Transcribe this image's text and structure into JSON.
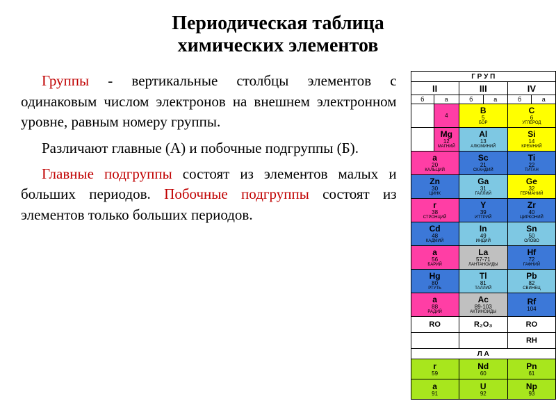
{
  "title_l1": "Периодическая таблица",
  "title_l2": "химических элементов",
  "paragraphs": {
    "p1_kw": "Группы",
    "p1_rest": " - вертикальные столбцы элементов с одинаковым числом электронов на внешнем электронном уровне, равным номеру группы.",
    "p2": "Различают главные (А) и побочные подгруппы (Б).",
    "p3_kw": "Главные подгруппы",
    "p3_rest": " состоят из элементов малых и больших периодов.",
    "p4_kw": "Побочные подгруппы",
    "p4_rest": " состоят из элементов только больших периодов."
  },
  "table": {
    "header_top": "Г Р У П",
    "group_labels": [
      "II",
      "III",
      "IV"
    ],
    "sub_labels": [
      "б",
      "а",
      "б",
      "а",
      "б",
      "а"
    ],
    "rows": [
      [
        {
          "sym": "",
          "num": "",
          "name": "",
          "colspan": 1,
          "cls": "white"
        },
        {
          "sym": "",
          "num": "4",
          "name": "",
          "colspan": 1,
          "cls": "pink"
        },
        {
          "sym": "B",
          "num": "5",
          "name": "БОР",
          "colspan": 2,
          "cls": "yellow"
        },
        {
          "sym": "C",
          "num": "6",
          "name": "УГЛЕРОД",
          "colspan": 2,
          "cls": "yellow"
        }
      ],
      [
        {
          "sym": "",
          "num": "",
          "name": "",
          "colspan": 1,
          "cls": "white"
        },
        {
          "sym": "Mg",
          "num": "12",
          "name": "МАГНИЙ",
          "colspan": 1,
          "cls": "pink"
        },
        {
          "sym": "Al",
          "num": "13",
          "name": "АЛЮМИНИЙ",
          "colspan": 2,
          "cls": "sky"
        },
        {
          "sym": "Si",
          "num": "14",
          "name": "КРЕМНИЙ",
          "colspan": 2,
          "cls": "yellow"
        }
      ],
      [
        {
          "sym": "a",
          "num": "20",
          "name": "КАЛЬЦИЙ",
          "colspan": 2,
          "cls": "pink"
        },
        {
          "sym": "Sc",
          "num": "21",
          "name": "СКАНДИЙ",
          "colspan": 2,
          "cls": "blue"
        },
        {
          "sym": "Ti",
          "num": "22",
          "name": "ТИТАН",
          "colspan": 2,
          "cls": "blue"
        }
      ],
      [
        {
          "sym": "Zn",
          "num": "30",
          "name": "ЦИНК",
          "colspan": 2,
          "cls": "blue"
        },
        {
          "sym": "Ga",
          "num": "31",
          "name": "ГАЛЛИЙ",
          "colspan": 2,
          "cls": "sky"
        },
        {
          "sym": "Ge",
          "num": "32",
          "name": "ГЕРМАНИЙ",
          "colspan": 2,
          "cls": "yellow"
        }
      ],
      [
        {
          "sym": "r",
          "num": "38",
          "name": "СТРОНЦИЙ",
          "colspan": 2,
          "cls": "pink"
        },
        {
          "sym": "Y",
          "num": "39",
          "name": "ИТТРИЙ",
          "colspan": 2,
          "cls": "blue"
        },
        {
          "sym": "Zr",
          "num": "40",
          "name": "ЦИРКОНИЙ",
          "colspan": 2,
          "cls": "blue"
        }
      ],
      [
        {
          "sym": "Cd",
          "num": "48",
          "name": "КАДМИЙ",
          "colspan": 2,
          "cls": "blue"
        },
        {
          "sym": "In",
          "num": "49",
          "name": "ИНДИЙ",
          "colspan": 2,
          "cls": "sky"
        },
        {
          "sym": "Sn",
          "num": "50",
          "name": "ОЛОВО",
          "colspan": 2,
          "cls": "sky"
        }
      ],
      [
        {
          "sym": "a",
          "num": "56",
          "name": "БАРИЙ",
          "colspan": 2,
          "cls": "pink"
        },
        {
          "sym": "La",
          "num": "57-71",
          "name": "ЛАНТАНОИДЫ",
          "colspan": 2,
          "cls": "gray"
        },
        {
          "sym": "Hf",
          "num": "72",
          "name": "ГАФНИЙ",
          "colspan": 2,
          "cls": "blue"
        }
      ],
      [
        {
          "sym": "Hg",
          "num": "80",
          "name": "РТУТЬ",
          "colspan": 2,
          "cls": "blue"
        },
        {
          "sym": "Tl",
          "num": "81",
          "name": "ТАЛЛИЙ",
          "colspan": 2,
          "cls": "sky"
        },
        {
          "sym": "Pb",
          "num": "82",
          "name": "СВИНЕЦ",
          "colspan": 2,
          "cls": "sky"
        }
      ],
      [
        {
          "sym": "a",
          "num": "88",
          "name": "РАДИЙ",
          "colspan": 2,
          "cls": "pink"
        },
        {
          "sym": "Ac",
          "num": "89-103",
          "name": "АКТИНОИДЫ",
          "colspan": 2,
          "cls": "gray"
        },
        {
          "sym": "Rf",
          "num": "104",
          "name": "",
          "colspan": 2,
          "cls": "blue"
        }
      ]
    ],
    "oxide_row": [
      "RO",
      "R₂O₃",
      "RO"
    ],
    "hydride_row": [
      "",
      "",
      "RH"
    ],
    "L_label": "Л А",
    "lanthanides": [
      {
        "sym": "r",
        "num": "59",
        "name": "",
        "cls": "lime"
      },
      {
        "sym": "Nd",
        "num": "60",
        "name": "",
        "cls": "lime"
      },
      {
        "sym": "Pn",
        "num": "61",
        "name": "",
        "cls": "lime"
      }
    ],
    "actinides": [
      {
        "sym": "a",
        "num": "91",
        "name": "",
        "cls": "lime"
      },
      {
        "sym": "U",
        "num": "92",
        "name": "",
        "cls": "lime"
      },
      {
        "sym": "Np",
        "num": "93",
        "name": "",
        "cls": "lime"
      }
    ]
  },
  "colors": {
    "pink": "#ff3ea5",
    "yellow": "#ffff00",
    "sky": "#7ec8e3",
    "blue": "#3c78d8",
    "lime": "#a8e61d",
    "gray": "#c0c0c0",
    "white": "#ffffff"
  }
}
